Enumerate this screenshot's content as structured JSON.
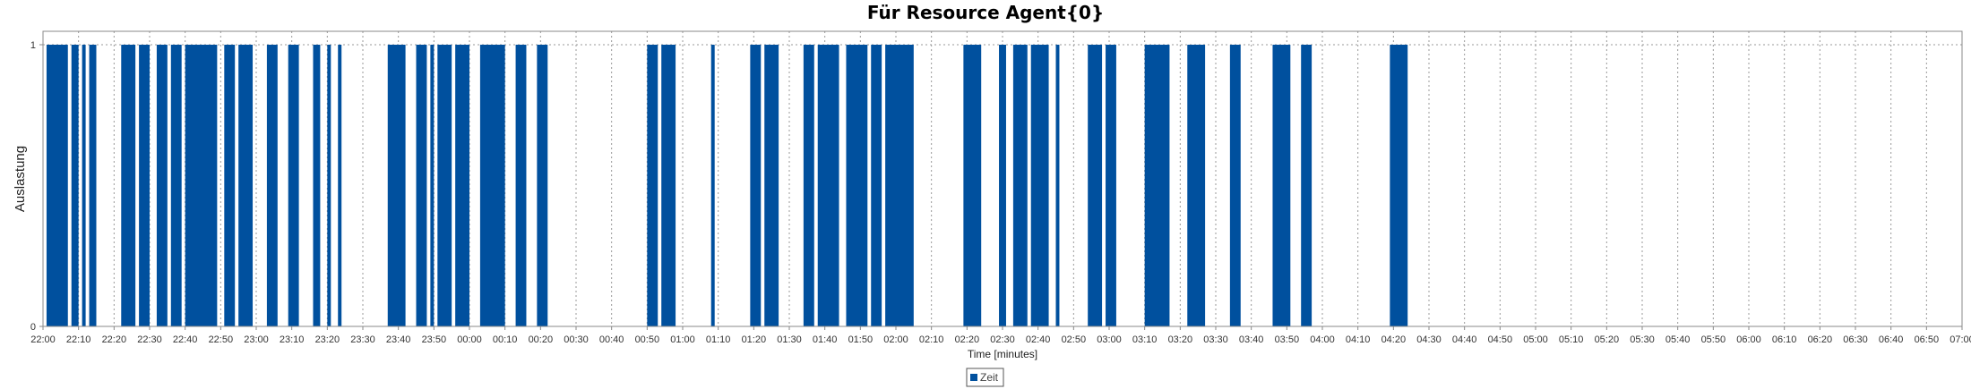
{
  "chart_data": {
    "type": "bar",
    "title": "Für Resource Agent{0}",
    "xlabel": "Time [minutes]",
    "ylabel": "Auslastung",
    "x_ticks": [
      "22:00",
      "22:10",
      "22:20",
      "22:30",
      "22:40",
      "22:50",
      "23:00",
      "23:10",
      "23:20",
      "23:30",
      "23:40",
      "23:50",
      "00:00",
      "00:10",
      "00:20",
      "00:30",
      "00:40",
      "00:50",
      "01:00",
      "01:10",
      "01:20",
      "01:30",
      "01:40",
      "01:50",
      "02:00",
      "02:10",
      "02:20",
      "02:30",
      "02:40",
      "02:50",
      "03:00",
      "03:10",
      "03:20",
      "03:30",
      "03:40",
      "03:50",
      "04:00",
      "04:10",
      "04:20",
      "04:30",
      "04:40",
      "04:50",
      "05:00",
      "05:10",
      "05:20",
      "05:30",
      "05:40",
      "05:50",
      "06:00",
      "06:10",
      "06:20",
      "06:30",
      "06:40",
      "06:50",
      "07:00"
    ],
    "y_ticks": [
      "0",
      "1"
    ],
    "xlim": [
      "22:00",
      "07:00"
    ],
    "ylim": [
      0,
      1
    ],
    "grid": true,
    "legend_position": "bottom-center",
    "series": [
      {
        "name": "Zeit",
        "color": "#00509e",
        "intervals": [
          [
            "22:01",
            "22:07"
          ],
          [
            "22:08",
            "22:10"
          ],
          [
            "22:11",
            "22:12"
          ],
          [
            "22:13",
            "22:15"
          ],
          [
            "22:22",
            "22:26"
          ],
          [
            "22:27",
            "22:30"
          ],
          [
            "22:32",
            "22:35"
          ],
          [
            "22:36",
            "22:39"
          ],
          [
            "22:40",
            "22:49"
          ],
          [
            "22:51",
            "22:54"
          ],
          [
            "22:55",
            "22:59"
          ],
          [
            "23:03",
            "23:06"
          ],
          [
            "23:09",
            "23:12"
          ],
          [
            "23:16",
            "23:18"
          ],
          [
            "23:20",
            "23:21"
          ],
          [
            "23:23",
            "23:24"
          ],
          [
            "23:37",
            "23:42"
          ],
          [
            "23:45",
            "23:48"
          ],
          [
            "23:49",
            "23:50"
          ],
          [
            "23:51",
            "23:55"
          ],
          [
            "23:56",
            "24:00"
          ],
          [
            "24:03",
            "24:10"
          ],
          [
            "24:13",
            "24:16"
          ],
          [
            "24:19",
            "24:22"
          ],
          [
            "24:50",
            "24:53"
          ],
          [
            "24:54",
            "24:58"
          ],
          [
            "25:08",
            "25:09"
          ],
          [
            "25:19",
            "25:22"
          ],
          [
            "25:23",
            "25:27"
          ],
          [
            "25:34",
            "25:37"
          ],
          [
            "25:38",
            "25:44"
          ],
          [
            "25:46",
            "25:52"
          ],
          [
            "25:53",
            "25:56"
          ],
          [
            "25:57",
            "26:05"
          ],
          [
            "26:19",
            "26:24"
          ],
          [
            "26:29",
            "26:31"
          ],
          [
            "26:33",
            "26:37"
          ],
          [
            "26:38",
            "26:43"
          ],
          [
            "26:45",
            "26:46"
          ],
          [
            "26:54",
            "26:58"
          ],
          [
            "26:59",
            "27:02"
          ],
          [
            "27:10",
            "27:17"
          ],
          [
            "27:22",
            "27:27"
          ],
          [
            "27:34",
            "27:37"
          ],
          [
            "27:46",
            "27:51"
          ],
          [
            "27:54",
            "27:57"
          ],
          [
            "28:19",
            "28:24"
          ]
        ]
      }
    ]
  }
}
